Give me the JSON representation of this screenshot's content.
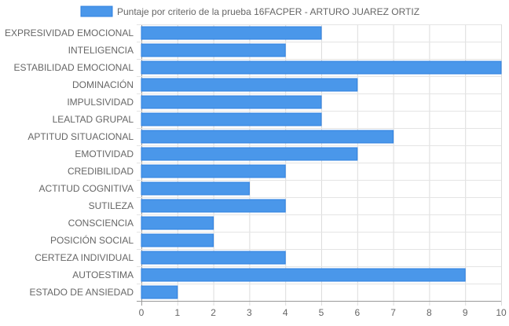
{
  "chart_data": {
    "type": "bar",
    "orientation": "horizontal",
    "categories": [
      "EXPRESIVIDAD EMOCIONAL",
      "INTELIGENCIA",
      "ESTABILIDAD EMOCIONAL",
      "DOMINACIÓN",
      "IMPULSIVIDAD",
      "LEALTAD GRUPAL",
      "APTITUD SITUACIONAL",
      "EMOTIVIDAD",
      "CREDIBILIDAD",
      "ACTITUD COGNITIVA",
      "SUTILEZA",
      "CONSCIENCIA",
      "POSICIÓN SOCIAL",
      "CERTEZA INDIVIDUAL",
      "AUTOESTIMA",
      "ESTADO DE ANSIEDAD"
    ],
    "series": [
      {
        "name": "Puntaje por criterio de la prueba 16FACPER - ARTURO JUAREZ ORTIZ",
        "values": [
          5,
          4,
          10,
          6,
          5,
          5,
          7,
          6,
          4,
          3,
          4,
          2,
          2,
          4,
          9,
          1
        ],
        "color": "#4a97ea",
        "border_color": "#2f80e0"
      }
    ],
    "xlim": [
      0,
      10
    ],
    "x_ticks": [
      0,
      1,
      2,
      3,
      4,
      5,
      6,
      7,
      8,
      9,
      10
    ],
    "grid": true,
    "legend_position": "top-center",
    "title": "",
    "xlabel": "",
    "ylabel": ""
  }
}
